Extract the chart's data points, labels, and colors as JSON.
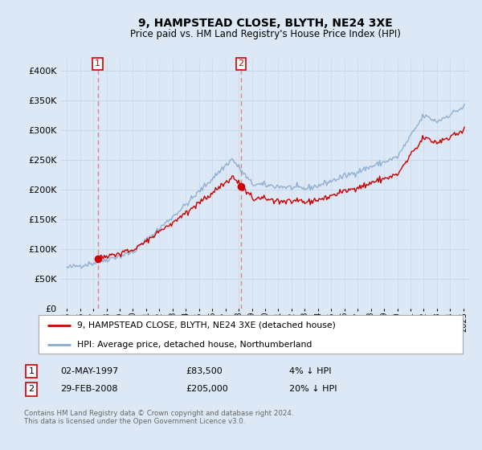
{
  "title": "9, HAMPSTEAD CLOSE, BLYTH, NE24 3XE",
  "subtitle": "Price paid vs. HM Land Registry's House Price Index (HPI)",
  "legend_line1": "9, HAMPSTEAD CLOSE, BLYTH, NE24 3XE (detached house)",
  "legend_line2": "HPI: Average price, detached house, Northumberland",
  "table_row1_num": "1",
  "table_row1_date": "02-MAY-1997",
  "table_row1_price": "£83,500",
  "table_row1_hpi": "4% ↓ HPI",
  "table_row2_num": "2",
  "table_row2_date": "29-FEB-2008",
  "table_row2_price": "£205,000",
  "table_row2_hpi": "20% ↓ HPI",
  "footer": "Contains HM Land Registry data © Crown copyright and database right 2024.\nThis data is licensed under the Open Government Licence v3.0.",
  "sale1_year": 1997.33,
  "sale1_price": 83500,
  "sale2_year": 2008.17,
  "sale2_price": 205000,
  "ylim": [
    0,
    420000
  ],
  "yticks": [
    0,
    50000,
    100000,
    150000,
    200000,
    250000,
    300000,
    350000,
    400000
  ],
  "ytick_labels": [
    "£0",
    "£50K",
    "£100K",
    "£150K",
    "£200K",
    "£250K",
    "£300K",
    "£350K",
    "£400K"
  ],
  "xlim_start": 1994.5,
  "xlim_end": 2025.5,
  "background_color": "#dce8f5",
  "plot_bg_color": "#dce8f5",
  "grid_color": "#c8d8e8",
  "line_color_property": "#cc0000",
  "line_color_hpi": "#88aad0",
  "dashed_line_color": "#dd8888",
  "sale_dot_color": "#cc0000",
  "box_border_color": "#cc0000",
  "legend_border_color": "#aaaaaa",
  "footer_color": "#666666"
}
